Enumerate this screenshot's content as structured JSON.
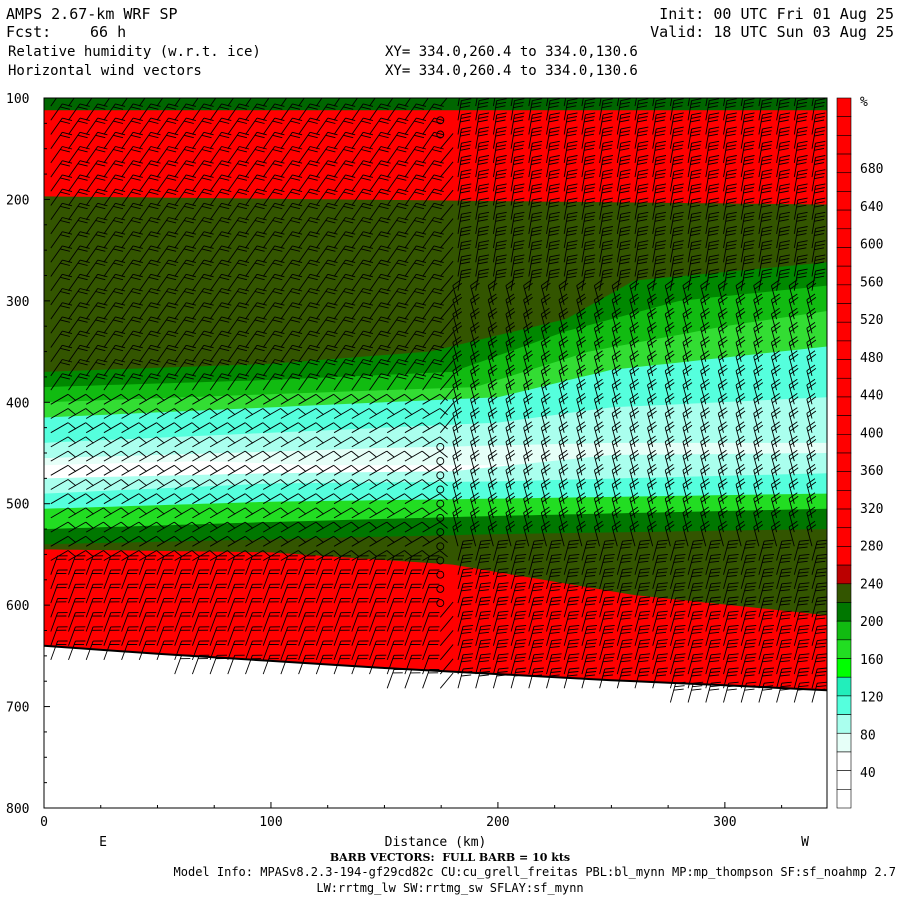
{
  "header": {
    "model": "AMPS 2.67-km WRF SP",
    "fcst_label": "Fcst:",
    "fcst_value": "66 h",
    "field1": "Relative humidity (w.r.t. ice)",
    "field2": "Horizontal wind vectors",
    "init": "Init: 00 UTC Fri 01 Aug 25",
    "valid": "Valid: 18 UTC Sun 03 Aug 25",
    "xy1": "XY= 334.0,260.4 to 334.0,130.6",
    "xy2": "XY= 334.0,260.4 to 334.0,130.6"
  },
  "footer": {
    "barb_note": "BARB VECTORS:  FULL BARB = 10 kts",
    "model_info": "Model Info: MPASv8.2.3-194-gf29cd82c CU:cu_grell_freitas PBL:bl_mynn MP:mp_thompson SF:sf_noahmp 2.7",
    "model_info2": "LW:rrtmg_lw SW:rrtmg_sw SFLAY:sf_mynn"
  },
  "chart_data": {
    "type": "heatmap",
    "xlabel": "Distance (km)",
    "ylabel": "",
    "x_left_label": "E",
    "x_right_label": "W",
    "xlim": [
      0,
      345
    ],
    "ylim": [
      100,
      800
    ],
    "y_inverted": true,
    "x_ticks": [
      0,
      100,
      200,
      300
    ],
    "y_ticks": [
      100,
      200,
      300,
      400,
      500,
      600,
      700,
      800
    ],
    "colorbar": {
      "unit": "%",
      "labels": [
        40,
        80,
        120,
        160,
        200,
        240,
        280,
        320,
        360,
        400,
        440,
        480,
        520,
        560,
        600,
        640,
        680
      ],
      "colors": [
        "#ffffff",
        "#ffffff",
        "#ffffff",
        "#e6fff8",
        "#aaffee",
        "#55ffdd",
        "#22eebb",
        "#00ff00",
        "#22dd22",
        "#11bb11",
        "#007700",
        "#335500",
        "#bb0000",
        "#ff0000",
        "#ff0000",
        "#ff0000",
        "#ff0000",
        "#ff0000",
        "#ff0000",
        "#ff0000",
        "#ff0000",
        "#ff0000",
        "#ff0000",
        "#ff0000",
        "#ff0000",
        "#ff0000",
        "#ff0000",
        "#ff0000",
        "#ff0000",
        "#ff0000",
        "#ff0000",
        "#ff0000",
        "#ff0000",
        "#ff0000",
        "#ff0000",
        "#ff0000",
        "#ff0000",
        "#ff0000"
      ]
    },
    "terrain_pressure": [
      [
        0,
        640
      ],
      [
        50,
        648
      ],
      [
        100,
        655
      ],
      [
        150,
        662
      ],
      [
        200,
        668
      ],
      [
        250,
        674
      ],
      [
        300,
        679
      ],
      [
        345,
        684
      ]
    ],
    "layers": [
      {
        "top": [
          [
            0,
            100
          ],
          [
            345,
            100
          ]
        ],
        "color": "#006600"
      },
      {
        "top": [
          [
            0,
            112
          ],
          [
            345,
            112
          ]
        ],
        "color": "#ff0000"
      },
      {
        "top": [
          [
            0,
            197
          ],
          [
            345,
            205
          ]
        ],
        "color": "#335500"
      },
      {
        "top": [
          [
            0,
            370
          ],
          [
            100,
            362
          ],
          [
            170,
            350
          ],
          [
            230,
            318
          ],
          [
            260,
            280
          ],
          [
            345,
            262
          ]
        ],
        "color": "#008800"
      },
      {
        "top": [
          [
            0,
            385
          ],
          [
            100,
            378
          ],
          [
            180,
            370
          ],
          [
            230,
            330
          ],
          [
            280,
            300
          ],
          [
            345,
            285
          ]
        ],
        "color": "#11bb11"
      },
      {
        "top": [
          [
            0,
            400
          ],
          [
            100,
            392
          ],
          [
            190,
            385
          ],
          [
            240,
            350
          ],
          [
            300,
            325
          ],
          [
            345,
            310
          ]
        ],
        "color": "#33dd33"
      },
      {
        "top": [
          [
            0,
            415
          ],
          [
            100,
            405
          ],
          [
            200,
            395
          ],
          [
            250,
            368
          ],
          [
            345,
            345
          ]
        ],
        "color": "#55ffdd"
      },
      {
        "top": [
          [
            0,
            440
          ],
          [
            100,
            430
          ],
          [
            200,
            420
          ],
          [
            250,
            405
          ],
          [
            345,
            395
          ]
        ],
        "color": "#aaffee"
      },
      {
        "top": [
          [
            0,
            455
          ],
          [
            80,
            450
          ],
          [
            150,
            445
          ],
          [
            250,
            440
          ],
          [
            345,
            440
          ]
        ],
        "color": "#e6fff8"
      },
      {
        "top": [
          [
            0,
            462
          ],
          [
            70,
            458
          ],
          [
            120,
            462
          ]
        ],
        "color": "#ffffff"
      },
      {
        "top": [
          [
            0,
            475
          ],
          [
            100,
            470
          ],
          [
            180,
            468
          ],
          [
            250,
            452
          ],
          [
            345,
            450
          ]
        ],
        "color": "#aaffee"
      },
      {
        "top": [
          [
            0,
            490
          ],
          [
            100,
            480
          ],
          [
            200,
            478
          ],
          [
            345,
            470
          ]
        ],
        "color": "#55ffdd"
      },
      {
        "top": [
          [
            0,
            505
          ],
          [
            100,
            498
          ],
          [
            200,
            495
          ],
          [
            345,
            490
          ]
        ],
        "color": "#22dd22"
      },
      {
        "top": [
          [
            0,
            525
          ],
          [
            100,
            518
          ],
          [
            200,
            512
          ],
          [
            345,
            505
          ]
        ],
        "color": "#007700"
      },
      {
        "top": [
          [
            0,
            540
          ],
          [
            100,
            535
          ],
          [
            200,
            530
          ],
          [
            345,
            525
          ]
        ],
        "color": "#335500"
      },
      {
        "top": [
          [
            0,
            545
          ],
          [
            100,
            548
          ],
          [
            180,
            560
          ],
          [
            260,
            590
          ],
          [
            345,
            610
          ]
        ],
        "color": "#ff0000"
      }
    ],
    "barbs": {
      "x_step_km": 7.8,
      "p_step_hpa": 14,
      "calm_column_km": 172
    }
  }
}
